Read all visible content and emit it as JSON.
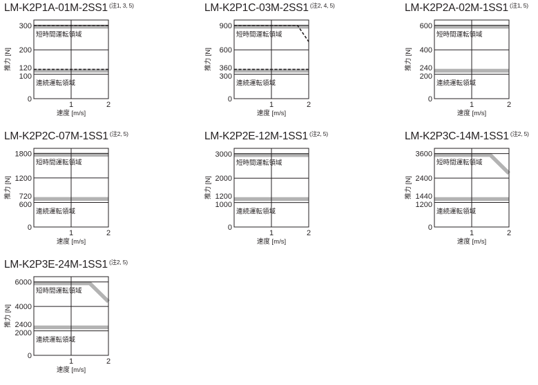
{
  "common": {
    "xlabel": "速度 [m/s]",
    "ylabel": "推力 [N]",
    "short_region_label": "短時間運転領域",
    "continuous_region_label": "連続運転領域",
    "band_color": "#b3b3b3",
    "line_color": "#231f20"
  },
  "chart_data": [
    {
      "type": "line",
      "title": "LM-K2P1A-01M-2SS1",
      "note": "(注1, 3, 5)",
      "xlabel": "速度 [m/s]",
      "ylabel": "推力 [N]",
      "xlim": [
        0,
        2
      ],
      "x_ticks": [
        0,
        1,
        2
      ],
      "x_tick_labels": [
        "",
        "1",
        "2"
      ],
      "ylim": [
        0,
        322
      ],
      "y_ticks": [
        0,
        100,
        120,
        200,
        300
      ],
      "y_tick_labels": [
        "0",
        "100",
        "120",
        "200",
        "300"
      ],
      "y_gridlines": [
        100,
        200,
        300
      ],
      "series": [
        {
          "style": "band",
          "values": [
            [
              0,
              300
            ],
            [
              2,
              300
            ]
          ]
        },
        {
          "style": "band",
          "values": [
            [
              0,
              120
            ],
            [
              2,
              120
            ]
          ]
        },
        {
          "style": "dashed",
          "values": [
            [
              0,
              300
            ],
            [
              2,
              300
            ]
          ]
        },
        {
          "style": "dashed",
          "values": [
            [
              0,
              120
            ],
            [
              2,
              120
            ]
          ]
        }
      ],
      "peak": 300,
      "continuous": 120
    },
    {
      "type": "line",
      "title": "LM-K2P1C-03M-2SS1",
      "note": "(注2, 4, 5)",
      "xlabel": "速度 [m/s]",
      "ylabel": "推力 [N]",
      "xlim": [
        0,
        2
      ],
      "x_ticks": [
        0,
        1,
        2
      ],
      "x_tick_labels": [
        "",
        "1",
        "2"
      ],
      "ylim": [
        0,
        966
      ],
      "y_ticks": [
        0,
        300,
        360,
        600,
        900
      ],
      "y_tick_labels": [
        "0",
        "300",
        "360",
        "600",
        "900"
      ],
      "y_gridlines": [
        300,
        600,
        900
      ],
      "series": [
        {
          "style": "band",
          "values": [
            [
              0,
              900
            ],
            [
              2,
              900
            ]
          ]
        },
        {
          "style": "band",
          "values": [
            [
              0,
              360
            ],
            [
              2,
              360
            ]
          ]
        },
        {
          "style": "dashed",
          "values": [
            [
              0,
              900
            ],
            [
              1.7,
              900
            ],
            [
              2,
              700
            ]
          ]
        },
        {
          "style": "dashed",
          "values": [
            [
              0,
              360
            ],
            [
              2,
              360
            ]
          ]
        }
      ],
      "peak": 900,
      "continuous": 360
    },
    {
      "type": "line",
      "title": "LM-K2P2A-02M-1SS1",
      "note": "(注1, 5)",
      "xlabel": "速度 [m/s]",
      "ylabel": "推力 [N]",
      "xlim": [
        0,
        2
      ],
      "x_ticks": [
        0,
        1,
        2
      ],
      "x_tick_labels": [
        "",
        "1",
        "2"
      ],
      "ylim": [
        0,
        644
      ],
      "y_ticks": [
        0,
        200,
        240,
        400,
        600
      ],
      "y_tick_labels": [
        "0",
        "200",
        "240",
        "400",
        "600"
      ],
      "y_gridlines": [
        200,
        400,
        600
      ],
      "series": [
        {
          "style": "band",
          "values": [
            [
              0,
              600
            ],
            [
              2,
              600
            ]
          ]
        },
        {
          "style": "band",
          "values": [
            [
              0,
              240
            ],
            [
              2,
              240
            ]
          ]
        }
      ],
      "peak": 600,
      "continuous": 240
    },
    {
      "type": "line",
      "title": "LM-K2P2C-07M-1SS1",
      "note": "(注2, 5)",
      "xlabel": "速度 [m/s]",
      "ylabel": "推力 [N]",
      "xlim": [
        0,
        2
      ],
      "x_ticks": [
        0,
        1,
        2
      ],
      "x_tick_labels": [
        "",
        "1",
        "2"
      ],
      "ylim": [
        0,
        1925
      ],
      "y_ticks": [
        0,
        600,
        720,
        1200,
        1800
      ],
      "y_tick_labels": [
        "0",
        "600",
        "720",
        "1200",
        "1800"
      ],
      "y_gridlines": [
        600,
        1200,
        1800
      ],
      "series": [
        {
          "style": "band",
          "values": [
            [
              0,
              1800
            ],
            [
              2,
              1800
            ]
          ]
        },
        {
          "style": "band",
          "values": [
            [
              0,
              720
            ],
            [
              2,
              720
            ]
          ]
        }
      ],
      "peak": 1800,
      "continuous": 720
    },
    {
      "type": "line",
      "title": "LM-K2P2E-12M-1SS1",
      "note": "(注2, 5)",
      "xlabel": "速度 [m/s]",
      "ylabel": "推力 [N]",
      "xlim": [
        0,
        2
      ],
      "x_ticks": [
        0,
        1,
        2
      ],
      "x_tick_labels": [
        "",
        "1",
        "2"
      ],
      "ylim": [
        0,
        3220
      ],
      "y_ticks": [
        0,
        1000,
        1200,
        2000,
        3000
      ],
      "y_tick_labels": [
        "0",
        "1000",
        "1200",
        "2000",
        "3000"
      ],
      "y_gridlines": [
        1000,
        2000,
        3000
      ],
      "series": [
        {
          "style": "band",
          "values": [
            [
              0,
              3000
            ],
            [
              2,
              3000
            ]
          ]
        },
        {
          "style": "band",
          "values": [
            [
              0,
              1200
            ],
            [
              2,
              1200
            ]
          ]
        }
      ],
      "peak": 3000,
      "continuous": 1200
    },
    {
      "type": "line",
      "title": "LM-K2P3C-14M-1SS1",
      "note": "(注2, 5)",
      "xlabel": "速度 [m/s]",
      "ylabel": "推力 [N]",
      "xlim": [
        0,
        2
      ],
      "x_ticks": [
        0,
        1,
        2
      ],
      "x_tick_labels": [
        "",
        "1",
        "2"
      ],
      "ylim": [
        0,
        3860
      ],
      "y_ticks": [
        0,
        1200,
        1440,
        2400,
        3600
      ],
      "y_tick_labels": [
        "0",
        "1200",
        "1440",
        "2400",
        "3600"
      ],
      "y_gridlines": [
        1200,
        2400,
        3600
      ],
      "series": [
        {
          "style": "band",
          "values": [
            [
              0,
              3600
            ],
            [
              1.5,
              3600
            ],
            [
              2,
              2700
            ]
          ]
        },
        {
          "style": "band",
          "values": [
            [
              0,
              1440
            ],
            [
              2,
              1440
            ]
          ]
        }
      ],
      "peak": 3600,
      "continuous": 1440
    },
    {
      "type": "line",
      "title": "LM-K2P3E-24M-1SS1",
      "note": "(注2, 5)",
      "xlabel": "速度 [m/s]",
      "ylabel": "推力 [N]",
      "xlim": [
        0,
        2
      ],
      "x_ticks": [
        0,
        1,
        2
      ],
      "x_tick_labels": [
        "",
        "1",
        "2"
      ],
      "ylim": [
        0,
        6430
      ],
      "y_ticks": [
        0,
        2000,
        2400,
        4000,
        6000
      ],
      "y_tick_labels": [
        "0",
        "2000",
        "2400",
        "4000",
        "6000"
      ],
      "y_gridlines": [
        2000,
        4000,
        6000
      ],
      "series": [
        {
          "style": "band",
          "values": [
            [
              0,
              6000
            ],
            [
              1.5,
              6000
            ],
            [
              2,
              4500
            ]
          ]
        },
        {
          "style": "band",
          "values": [
            [
              0,
              2400
            ],
            [
              2,
              2400
            ]
          ]
        }
      ],
      "peak": 6000,
      "continuous": 2400
    }
  ]
}
